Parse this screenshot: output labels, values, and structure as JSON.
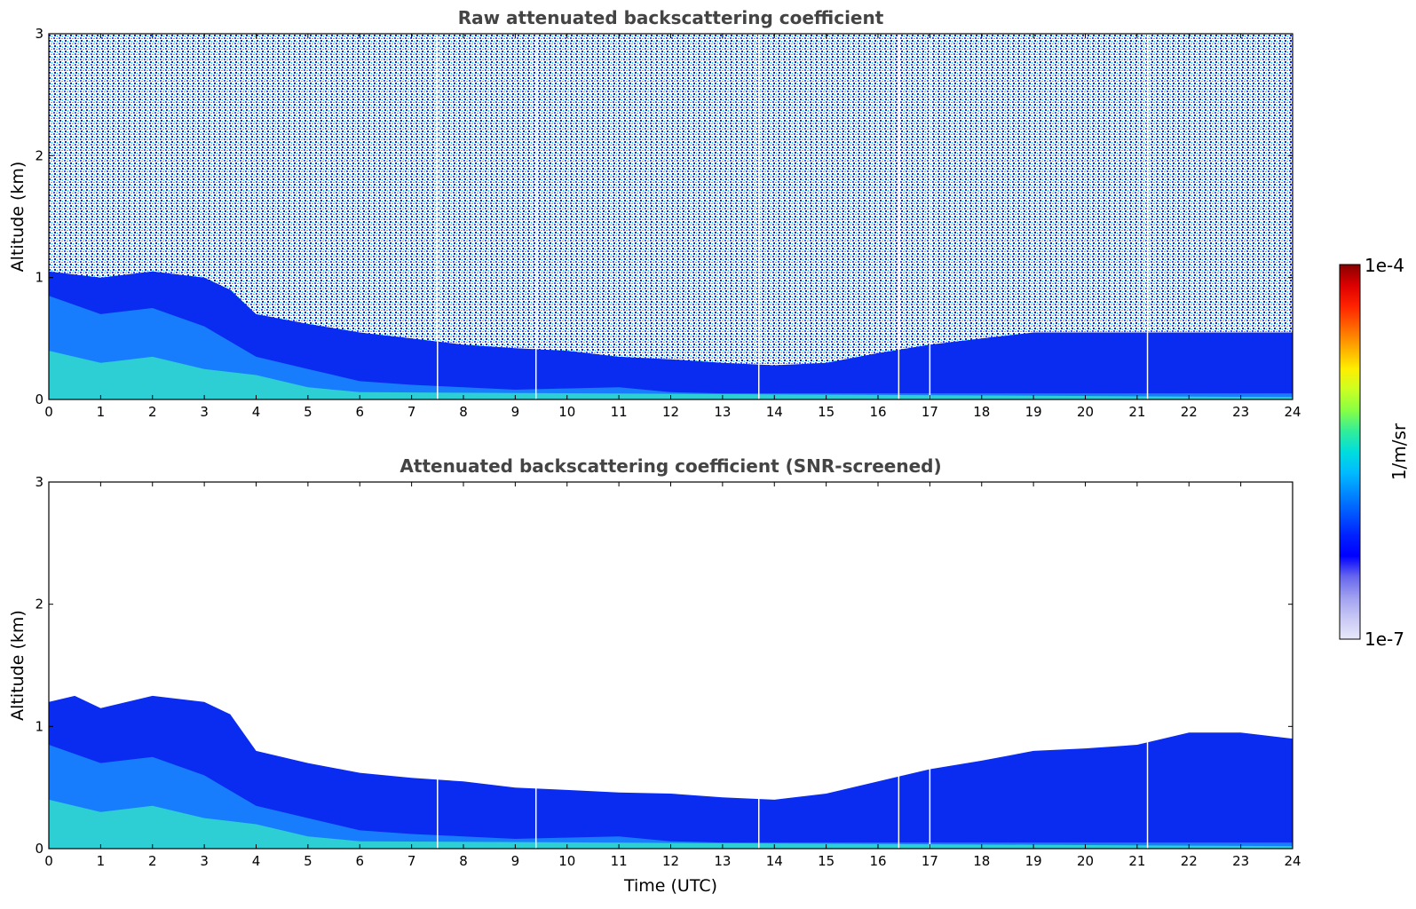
{
  "chart_data": [
    {
      "type": "heatmap",
      "title": "Raw attenuated backscattering coefficient",
      "xlabel": "",
      "ylabel": "Altitude (km)",
      "xlim": [
        0,
        24
      ],
      "ylim": [
        0,
        3
      ],
      "xticks": [
        0,
        1,
        2,
        3,
        4,
        5,
        6,
        7,
        8,
        9,
        10,
        11,
        12,
        13,
        14,
        15,
        16,
        17,
        18,
        19,
        20,
        21,
        22,
        23,
        24
      ],
      "yticks": [
        0,
        1,
        2,
        3
      ],
      "noise_screened": false,
      "boundary_layer_top_km": {
        "x": [
          0,
          1,
          2,
          3,
          3.5,
          4,
          5,
          6,
          7,
          8,
          9,
          10,
          11,
          12,
          13,
          14,
          15,
          16,
          17,
          18,
          19,
          20,
          21,
          22,
          23,
          24
        ],
        "y": [
          1.05,
          1.0,
          1.05,
          1.0,
          0.9,
          0.7,
          0.62,
          0.55,
          0.5,
          0.45,
          0.42,
          0.4,
          0.35,
          0.33,
          0.3,
          0.28,
          0.3,
          0.38,
          0.45,
          0.5,
          0.55,
          0.55,
          0.55,
          0.55,
          0.55,
          0.55
        ]
      },
      "data_gaps_utc": [
        7.5,
        9.4,
        13.7,
        16.4,
        17.0,
        21.2
      ]
    },
    {
      "type": "heatmap",
      "title": "Attenuated backscattering coefficient (SNR-screened)",
      "xlabel": "Time (UTC)",
      "ylabel": "Altitude (km)",
      "xlim": [
        0,
        24
      ],
      "ylim": [
        0,
        3
      ],
      "xticks": [
        0,
        1,
        2,
        3,
        4,
        5,
        6,
        7,
        8,
        9,
        10,
        11,
        12,
        13,
        14,
        15,
        16,
        17,
        18,
        19,
        20,
        21,
        22,
        23,
        24
      ],
      "yticks": [
        0,
        1,
        2,
        3
      ],
      "noise_screened": true,
      "boundary_layer_top_km": {
        "x": [
          0,
          0.5,
          1,
          2,
          3,
          3.5,
          4,
          5,
          6,
          7,
          8,
          9,
          10,
          11,
          12,
          13,
          14,
          15,
          16,
          17,
          18,
          19,
          20,
          21,
          22,
          23,
          24
        ],
        "y": [
          1.2,
          1.25,
          1.15,
          1.25,
          1.2,
          1.1,
          0.8,
          0.7,
          0.62,
          0.58,
          0.55,
          0.5,
          0.48,
          0.46,
          0.45,
          0.42,
          0.4,
          0.45,
          0.55,
          0.65,
          0.72,
          0.8,
          0.82,
          0.85,
          0.95,
          0.95,
          0.9
        ]
      },
      "data_gaps_utc": [
        7.5,
        9.4,
        13.7,
        16.4,
        17.0,
        21.2
      ]
    }
  ],
  "colorbar": {
    "max_label": "1e-4",
    "min_label": "1e-7",
    "unit_label": "1/m/sr",
    "colors": [
      "#e8e8fa",
      "#c8c8f5",
      "#a0a0f0",
      "#6666ee",
      "#0000ff",
      "#0022ff",
      "#0055ff",
      "#0088ff",
      "#00bbff",
      "#00dddd",
      "#33ee99",
      "#88ff44",
      "#ccff22",
      "#ffee00",
      "#ffaa00",
      "#ff6600",
      "#ff2200",
      "#dd0000",
      "#880000"
    ]
  }
}
